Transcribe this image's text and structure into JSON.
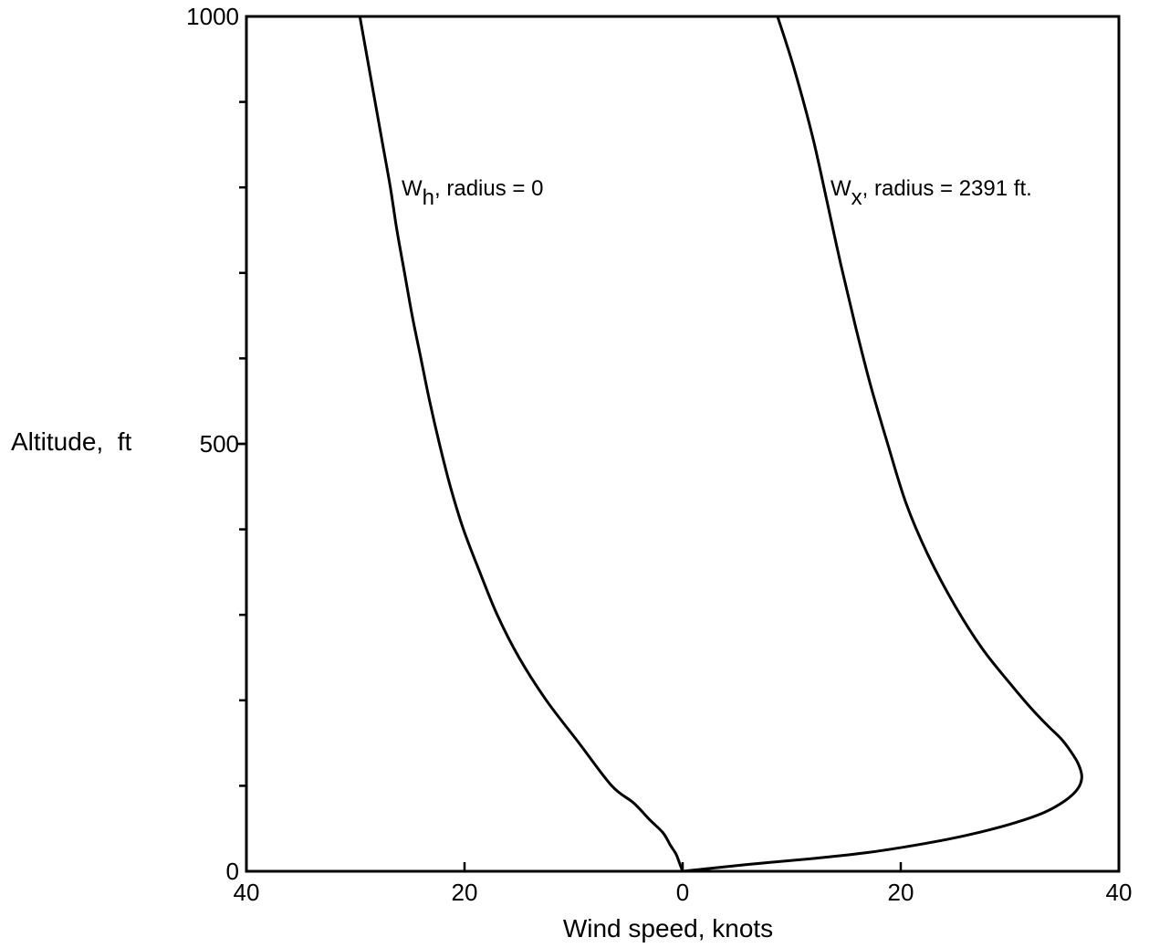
{
  "chart_data": {
    "type": "line",
    "xlabel": "Wind speed, knots",
    "ylabel": "Altitude,  ft",
    "x_ticks": [
      {
        "value": -40,
        "label": "40"
      },
      {
        "value": -20,
        "label": "20"
      },
      {
        "value": 0,
        "label": "0"
      },
      {
        "value": 20,
        "label": "20"
      },
      {
        "value": 40,
        "label": "40"
      }
    ],
    "y_ticks": [
      {
        "value": 0,
        "label": "0"
      },
      {
        "value": 500,
        "label": "500"
      },
      {
        "value": 1000,
        "label": "1000"
      }
    ],
    "xlim": [
      -40,
      40
    ],
    "ylim": [
      0,
      1000
    ],
    "y_minor_tick_step": 100,
    "grid": false,
    "series": [
      {
        "annotation": {
          "symbol": "W",
          "subscript": "h",
          "text": ", radius = 0"
        },
        "points": [
          {
            "x": 0,
            "y": 0
          },
          {
            "x": -0.3,
            "y": 10
          },
          {
            "x": -0.6,
            "y": 20
          },
          {
            "x": -1.1,
            "y": 30
          },
          {
            "x": -1.8,
            "y": 45
          },
          {
            "x": -3.0,
            "y": 60
          },
          {
            "x": -4.5,
            "y": 80
          },
          {
            "x": -6.5,
            "y": 100
          },
          {
            "x": -9.5,
            "y": 150
          },
          {
            "x": -12.5,
            "y": 200
          },
          {
            "x": -15.0,
            "y": 250
          },
          {
            "x": -17.0,
            "y": 300
          },
          {
            "x": -18.6,
            "y": 350
          },
          {
            "x": -20.1,
            "y": 400
          },
          {
            "x": -21.3,
            "y": 450
          },
          {
            "x": -22.3,
            "y": 500
          },
          {
            "x": -23.2,
            "y": 550
          },
          {
            "x": -24.0,
            "y": 600
          },
          {
            "x": -24.8,
            "y": 650
          },
          {
            "x": -25.5,
            "y": 700
          },
          {
            "x": -26.2,
            "y": 750
          },
          {
            "x": -26.8,
            "y": 800
          },
          {
            "x": -27.5,
            "y": 850
          },
          {
            "x": -28.2,
            "y": 900
          },
          {
            "x": -28.9,
            "y": 950
          },
          {
            "x": -29.6,
            "y": 1000
          }
        ]
      },
      {
        "annotation": {
          "symbol": "W",
          "subscript": "x",
          "text": ", radius = 2391 ft."
        },
        "points": [
          {
            "x": 0,
            "y": 0
          },
          {
            "x": 6,
            "y": 8
          },
          {
            "x": 12,
            "y": 15
          },
          {
            "x": 17,
            "y": 22
          },
          {
            "x": 22,
            "y": 32
          },
          {
            "x": 26,
            "y": 42
          },
          {
            "x": 30,
            "y": 55
          },
          {
            "x": 33,
            "y": 68
          },
          {
            "x": 35,
            "y": 82
          },
          {
            "x": 36.2,
            "y": 96
          },
          {
            "x": 36.6,
            "y": 110
          },
          {
            "x": 36.3,
            "y": 125
          },
          {
            "x": 35.6,
            "y": 140
          },
          {
            "x": 34.7,
            "y": 155
          },
          {
            "x": 33.5,
            "y": 170
          },
          {
            "x": 32,
            "y": 190
          },
          {
            "x": 30,
            "y": 220
          },
          {
            "x": 27.5,
            "y": 260
          },
          {
            "x": 25,
            "y": 310
          },
          {
            "x": 22.5,
            "y": 370
          },
          {
            "x": 20.5,
            "y": 430
          },
          {
            "x": 18.8,
            "y": 500
          },
          {
            "x": 17.2,
            "y": 570
          },
          {
            "x": 15.8,
            "y": 640
          },
          {
            "x": 14.5,
            "y": 710
          },
          {
            "x": 13.3,
            "y": 780
          },
          {
            "x": 11.9,
            "y": 860
          },
          {
            "x": 10.2,
            "y": 940
          },
          {
            "x": 8.7,
            "y": 1000
          }
        ]
      }
    ]
  }
}
